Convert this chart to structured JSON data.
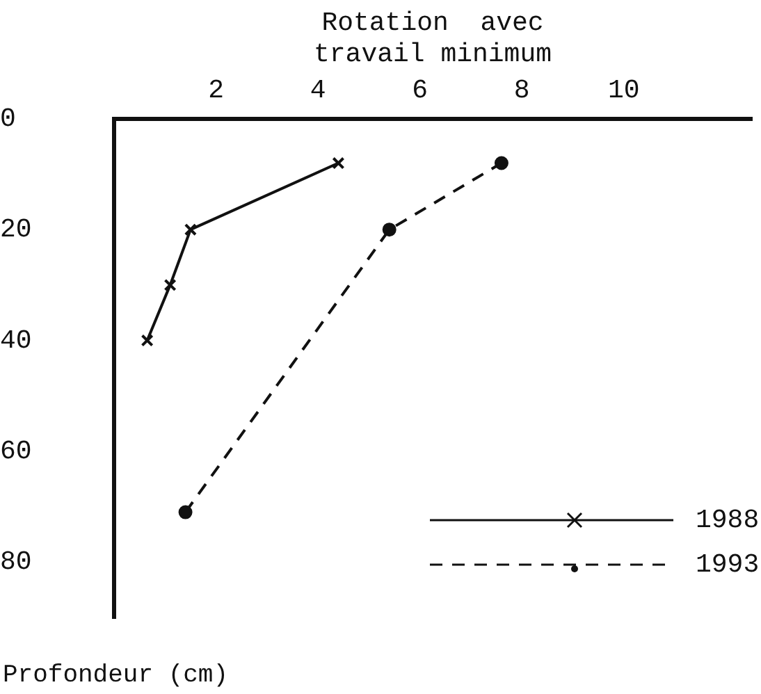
{
  "chart_data": {
    "type": "line",
    "xlabel": "Rotation  avec\ntravail minimum",
    "ylabel": "Profondeur (cm)",
    "xlim": [
      0,
      12.5
    ],
    "xticks": [
      2,
      4,
      6,
      8,
      10
    ],
    "ylim": [
      90,
      0
    ],
    "yticks": [
      0,
      20,
      40,
      60,
      80
    ],
    "grid": false,
    "legend": "bottom right",
    "series": [
      {
        "name": "1988",
        "color": "#111111",
        "x": [
          0.65,
          1.1,
          1.5,
          4.4
        ],
        "values": [
          40,
          30,
          20,
          8
        ],
        "marker": "cross",
        "line_style": "solid"
      },
      {
        "name": "1993",
        "color": "#111111",
        "x": [
          1.4,
          5.4,
          7.6
        ],
        "values": [
          71,
          20,
          8
        ],
        "marker": "circle",
        "line_style": "dashed"
      }
    ]
  }
}
